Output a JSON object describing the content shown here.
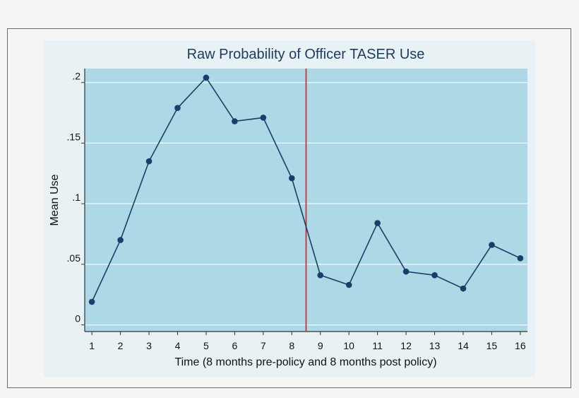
{
  "chart_data": {
    "type": "line",
    "title": "Raw Probability of Officer TASER Use",
    "xlabel": "Time (8 months pre-policy and 8 months post policy)",
    "ylabel": "Mean Use",
    "x": [
      1,
      2,
      3,
      4,
      5,
      6,
      7,
      8,
      9,
      10,
      11,
      12,
      13,
      14,
      15,
      16
    ],
    "values": [
      0.019,
      0.07,
      0.135,
      0.179,
      0.204,
      0.168,
      0.171,
      0.121,
      0.041,
      0.033,
      0.084,
      0.044,
      0.041,
      0.03,
      0.066,
      0.055
    ],
    "xlim": [
      0.75,
      16.25
    ],
    "ylim": [
      -0.0055,
      0.2115
    ],
    "xticks": [
      "1",
      "2",
      "3",
      "4",
      "5",
      "6",
      "7",
      "8",
      "9",
      "10",
      "11",
      "12",
      "13",
      "14",
      "15",
      "16"
    ],
    "yticks": [
      {
        "value": 0,
        "label": "0"
      },
      {
        "value": 0.05,
        "label": ".05"
      },
      {
        "value": 0.1,
        "label": ".1"
      },
      {
        "value": 0.15,
        "label": ".15"
      },
      {
        "value": 0.2,
        "label": ".2"
      }
    ],
    "vline": {
      "x": 8.5,
      "color": "#c8323a"
    },
    "grid": true,
    "colors": {
      "plot_bg": "#add8e6",
      "outer_bg": "#e8f2f5",
      "line": "#1a3f66",
      "grid": "#e8f4f8"
    }
  }
}
